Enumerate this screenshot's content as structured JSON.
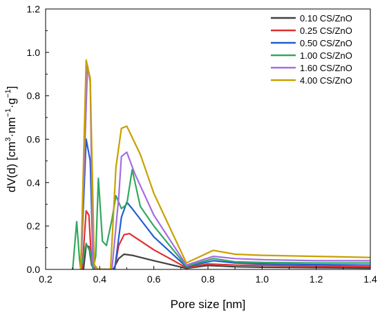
{
  "chart_data": {
    "type": "line",
    "title": "",
    "xlabel": "Pore size [nm]",
    "ylabel_parts": {
      "pre": "dV(d) [cm",
      "sup1": "3",
      "mid1": "·nm",
      "sup2": "−1",
      "mid2": "·g",
      "sup3": "−1",
      "post": "]"
    },
    "xlim": [
      0.2,
      1.4
    ],
    "ylim": [
      0.0,
      1.2
    ],
    "xticks": [
      0.2,
      0.4,
      0.6,
      0.8,
      1.0,
      1.2,
      1.4
    ],
    "xtick_labels": [
      "0.2",
      "0.4",
      "0.6",
      "0.8",
      "1.0",
      "1.2",
      "1.4"
    ],
    "yticks": [
      0.0,
      0.2,
      0.4,
      0.6,
      0.8,
      1.0,
      1.2
    ],
    "ytick_labels": [
      "0.0",
      "0.2",
      "0.4",
      "0.6",
      "0.8",
      "1.0",
      "1.2"
    ],
    "grid": false,
    "legend_position": "top-right",
    "series": [
      {
        "name": "0.10 CS/ZnO",
        "color": "#404040",
        "points": [
          [
            0.34,
            0.0
          ],
          [
            0.35,
            0.11
          ],
          [
            0.36,
            0.105
          ],
          [
            0.37,
            0.02
          ],
          [
            0.38,
            0.0
          ],
          [
            0.45,
            0.0
          ],
          [
            0.47,
            0.05
          ],
          [
            0.49,
            0.07
          ],
          [
            0.52,
            0.065
          ],
          [
            0.6,
            0.04
          ],
          [
            0.72,
            0.005
          ],
          [
            0.8,
            0.018
          ],
          [
            0.9,
            0.012
          ],
          [
            1.0,
            0.01
          ],
          [
            1.2,
            0.008
          ],
          [
            1.4,
            0.006
          ]
        ]
      },
      {
        "name": "0.25 CS/ZnO",
        "color": "#e03030",
        "points": [
          [
            0.335,
            0.0
          ],
          [
            0.35,
            0.27
          ],
          [
            0.36,
            0.25
          ],
          [
            0.37,
            0.03
          ],
          [
            0.38,
            0.0
          ],
          [
            0.455,
            0.0
          ],
          [
            0.47,
            0.11
          ],
          [
            0.49,
            0.16
          ],
          [
            0.51,
            0.165
          ],
          [
            0.6,
            0.09
          ],
          [
            0.72,
            0.008
          ],
          [
            0.8,
            0.025
          ],
          [
            0.9,
            0.02
          ],
          [
            1.0,
            0.018
          ],
          [
            1.2,
            0.015
          ],
          [
            1.4,
            0.012
          ]
        ]
      },
      {
        "name": "0.50 CS/ZnO",
        "color": "#1f5fd0",
        "points": [
          [
            0.33,
            0.0
          ],
          [
            0.35,
            0.6
          ],
          [
            0.365,
            0.5
          ],
          [
            0.375,
            0.05
          ],
          [
            0.385,
            0.0
          ],
          [
            0.455,
            0.0
          ],
          [
            0.48,
            0.24
          ],
          [
            0.5,
            0.31
          ],
          [
            0.52,
            0.28
          ],
          [
            0.6,
            0.15
          ],
          [
            0.72,
            0.012
          ],
          [
            0.82,
            0.04
          ],
          [
            0.9,
            0.03
          ],
          [
            1.0,
            0.025
          ],
          [
            1.2,
            0.022
          ],
          [
            1.4,
            0.02
          ]
        ]
      },
      {
        "name": "1.00 CS/ZnO",
        "color": "#30a860",
        "points": [
          [
            0.3,
            0.0
          ],
          [
            0.315,
            0.22
          ],
          [
            0.325,
            0.05
          ],
          [
            0.33,
            0.0
          ],
          [
            0.35,
            0.12
          ],
          [
            0.365,
            0.08
          ],
          [
            0.375,
            0.0
          ],
          [
            0.385,
            0.06
          ],
          [
            0.395,
            0.42
          ],
          [
            0.41,
            0.13
          ],
          [
            0.425,
            0.11
          ],
          [
            0.445,
            0.23
          ],
          [
            0.46,
            0.34
          ],
          [
            0.48,
            0.28
          ],
          [
            0.5,
            0.3
          ],
          [
            0.52,
            0.46
          ],
          [
            0.55,
            0.29
          ],
          [
            0.6,
            0.2
          ],
          [
            0.72,
            0.015
          ],
          [
            0.82,
            0.05
          ],
          [
            0.9,
            0.035
          ],
          [
            1.0,
            0.032
          ],
          [
            1.2,
            0.03
          ],
          [
            1.4,
            0.03
          ]
        ]
      },
      {
        "name": "1.60 CS/ZnO",
        "color": "#a56de0",
        "points": [
          [
            0.33,
            0.0
          ],
          [
            0.355,
            0.94
          ],
          [
            0.365,
            0.86
          ],
          [
            0.375,
            0.03
          ],
          [
            0.385,
            0.0
          ],
          [
            0.445,
            0.0
          ],
          [
            0.47,
            0.33
          ],
          [
            0.48,
            0.52
          ],
          [
            0.5,
            0.54
          ],
          [
            0.53,
            0.44
          ],
          [
            0.6,
            0.25
          ],
          [
            0.72,
            0.02
          ],
          [
            0.82,
            0.06
          ],
          [
            0.9,
            0.05
          ],
          [
            1.0,
            0.045
          ],
          [
            1.2,
            0.04
          ],
          [
            1.4,
            0.04
          ]
        ]
      },
      {
        "name": "4.00 CS/ZnO",
        "color": "#c8a000",
        "points": [
          [
            0.33,
            0.0
          ],
          [
            0.35,
            0.965
          ],
          [
            0.365,
            0.88
          ],
          [
            0.38,
            0.02
          ],
          [
            0.395,
            0.0
          ],
          [
            0.44,
            0.0
          ],
          [
            0.46,
            0.47
          ],
          [
            0.48,
            0.65
          ],
          [
            0.5,
            0.66
          ],
          [
            0.55,
            0.53
          ],
          [
            0.6,
            0.35
          ],
          [
            0.72,
            0.03
          ],
          [
            0.82,
            0.088
          ],
          [
            0.9,
            0.07
          ],
          [
            1.0,
            0.065
          ],
          [
            1.2,
            0.06
          ],
          [
            1.4,
            0.055
          ]
        ]
      }
    ]
  }
}
